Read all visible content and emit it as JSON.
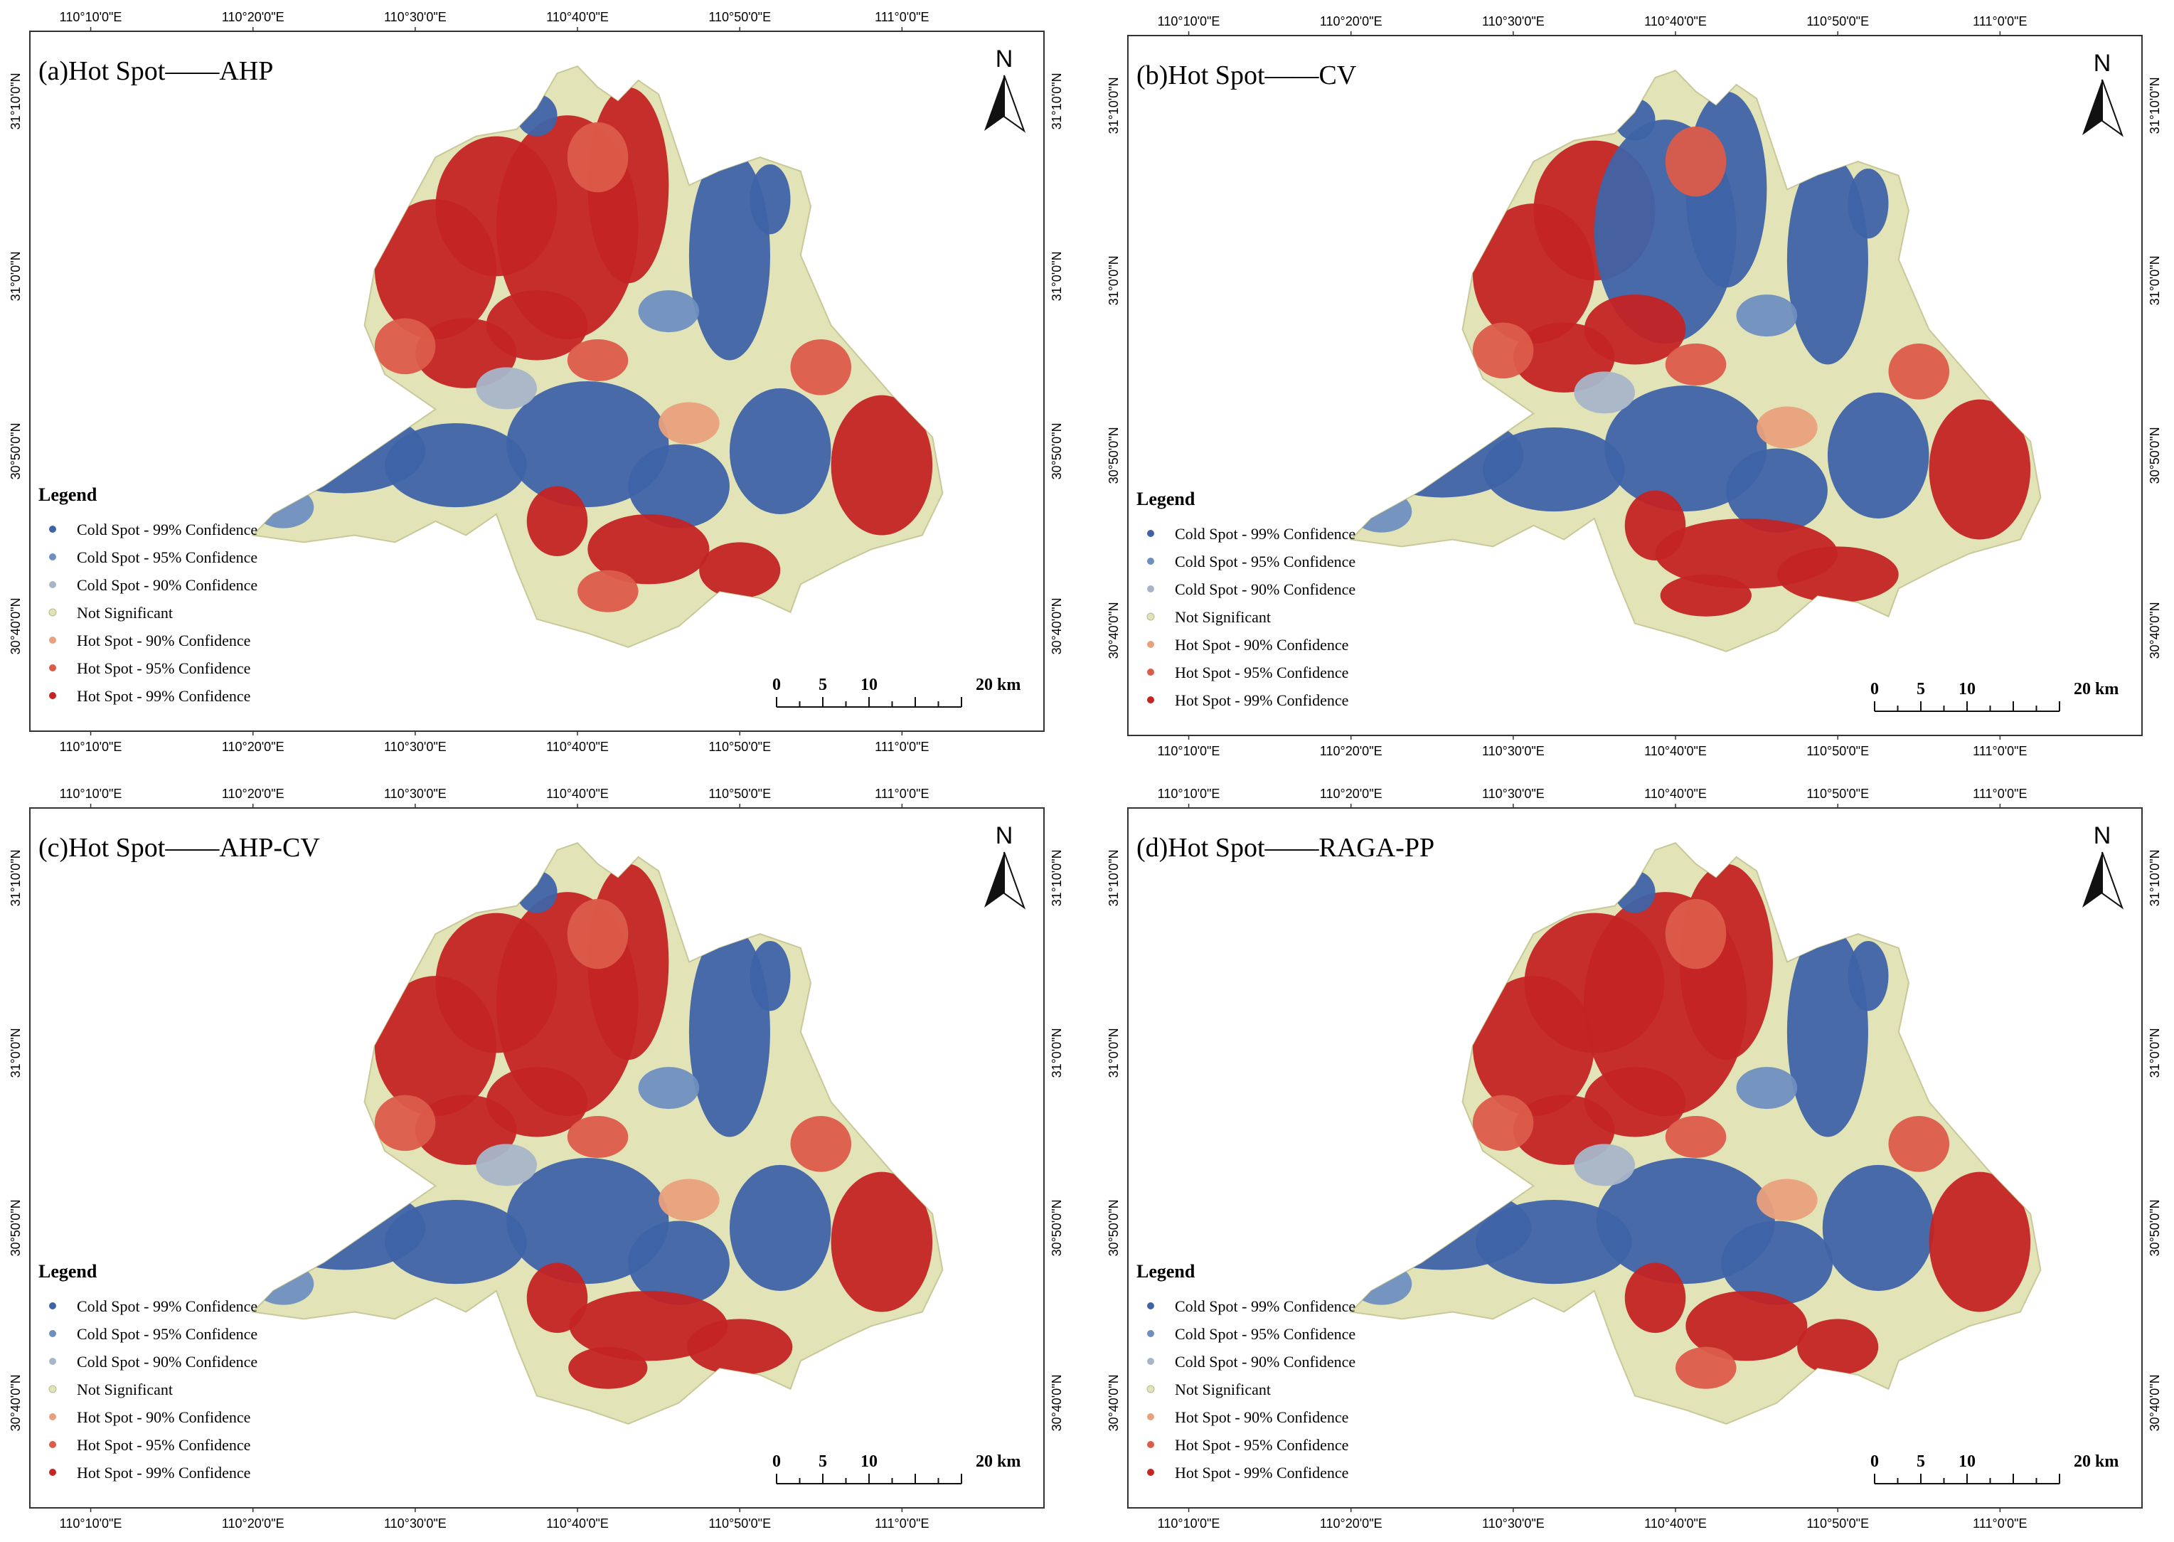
{
  "colors": {
    "cold99": "#3f63a6",
    "cold95": "#6f8fbf",
    "cold90": "#a8b5c8",
    "not_significant": "#e3e3b8",
    "hot90": "#e9a07c",
    "hot95": "#dc5c4a",
    "hot99": "#c42424",
    "frame": "#333333"
  },
  "axis_labels": {
    "lon": [
      "110°10'0\"E",
      "110°20'0\"E",
      "110°30'0\"E",
      "110°40'0\"E",
      "110°50'0\"E",
      "111°0'0\"E"
    ],
    "lat": [
      "31°10'0\"N",
      "31°0'0\"N",
      "30°50'0\"N",
      "30°40'0\"N"
    ]
  },
  "north_label": "N",
  "legend": {
    "title": "Legend",
    "items": [
      {
        "label": "Cold Spot - 99% Confidence",
        "color_key": "cold99"
      },
      {
        "label": "Cold Spot - 95% Confidence",
        "color_key": "cold95"
      },
      {
        "label": "Cold Spot - 90% Confidence",
        "color_key": "cold90"
      },
      {
        "label": "Not Significant",
        "color_key": "not_significant"
      },
      {
        "label": "Hot Spot - 90% Confidence",
        "color_key": "hot90"
      },
      {
        "label": "Hot Spot - 95% Confidence",
        "color_key": "hot95"
      },
      {
        "label": "Hot Spot - 99% Confidence",
        "color_key": "hot99"
      }
    ]
  },
  "scale_bar": {
    "labels": [
      "0",
      "5",
      "10",
      "20 km"
    ],
    "km_values": [
      0,
      5,
      10,
      20
    ]
  },
  "panels": [
    {
      "id": "a",
      "title": "(a)Hot Spot——AHP"
    },
    {
      "id": "b",
      "title": "(b)Hot Spot——CV"
    },
    {
      "id": "c",
      "title": "(c)Hot Spot——AHP-CV"
    },
    {
      "id": "d",
      "title": "(d)Hot Spot——RAGA-PP"
    }
  ]
}
